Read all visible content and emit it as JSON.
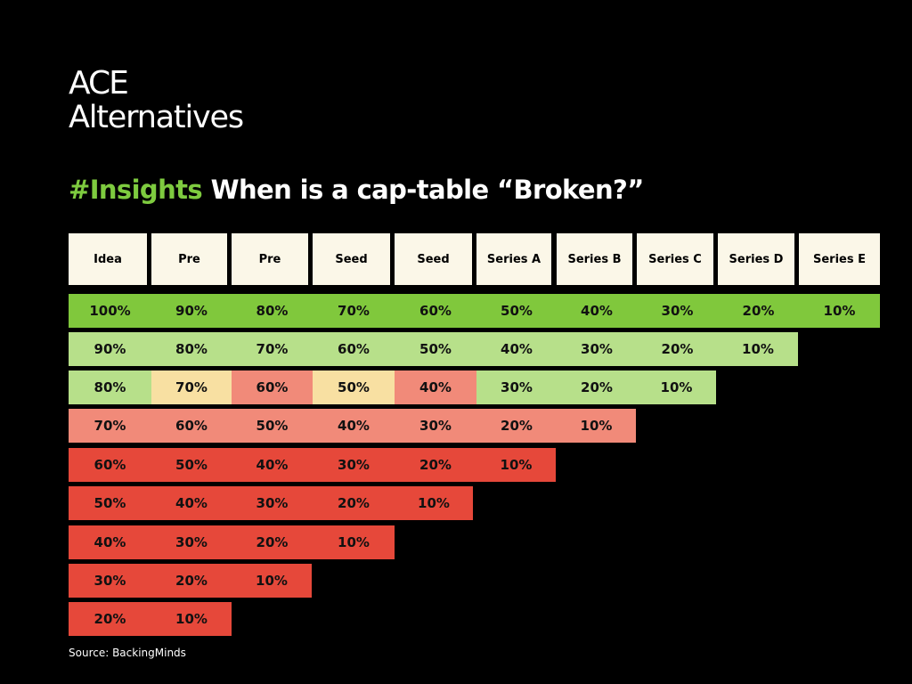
{
  "logo": {
    "line1": "ACE",
    "line2": "Alternatives"
  },
  "headline": {
    "tag": "#Insights",
    "text": "When is a cap-table “Broken?”"
  },
  "colors": {
    "green_dark": "#80c83c",
    "green_light": "#b7e08a",
    "yellow": "#f8e0a2",
    "salmon": "#f18a79",
    "red": "#e6483a",
    "header_bg": "#fbf7e8",
    "tag_green": "#7ecb3f"
  },
  "columns": [
    "Idea",
    "Pre",
    "Pre",
    "Seed",
    "Seed",
    "Series A",
    "Series B",
    "Series C",
    "Series D",
    "Series E"
  ],
  "rows": [
    {
      "fill": "green_dark",
      "cells": [
        {
          "v": "100%",
          "c": "green_dark"
        },
        {
          "v": "90%",
          "c": "green_dark"
        },
        {
          "v": "80%",
          "c": "green_dark"
        },
        {
          "v": "70%",
          "c": "green_dark"
        },
        {
          "v": "60%",
          "c": "green_dark"
        },
        {
          "v": "50%",
          "c": "green_dark"
        },
        {
          "v": "40%",
          "c": "green_dark"
        },
        {
          "v": "30%",
          "c": "green_dark"
        },
        {
          "v": "20%",
          "c": "green_dark"
        },
        {
          "v": "10%",
          "c": "green_dark"
        }
      ]
    },
    {
      "fill": "green_light",
      "cells": [
        {
          "v": "90%",
          "c": "green_light"
        },
        {
          "v": "80%",
          "c": "green_light"
        },
        {
          "v": "70%",
          "c": "green_light"
        },
        {
          "v": "60%",
          "c": "green_light"
        },
        {
          "v": "50%",
          "c": "green_light"
        },
        {
          "v": "40%",
          "c": "green_light"
        },
        {
          "v": "30%",
          "c": "green_light"
        },
        {
          "v": "20%",
          "c": "green_light"
        },
        {
          "v": "10%",
          "c": "green_light"
        }
      ]
    },
    {
      "fill": "green_light",
      "cells": [
        {
          "v": "80%",
          "c": "green_light"
        },
        {
          "v": "70%",
          "c": "yellow"
        },
        {
          "v": "60%",
          "c": "salmon"
        },
        {
          "v": "50%",
          "c": "yellow"
        },
        {
          "v": "40%",
          "c": "salmon"
        },
        {
          "v": "30%",
          "c": "green_light"
        },
        {
          "v": "20%",
          "c": "green_light"
        },
        {
          "v": "10%",
          "c": "green_light"
        }
      ]
    },
    {
      "fill": "salmon",
      "cells": [
        {
          "v": "70%",
          "c": "salmon"
        },
        {
          "v": "60%",
          "c": "salmon"
        },
        {
          "v": "50%",
          "c": "salmon"
        },
        {
          "v": "40%",
          "c": "salmon"
        },
        {
          "v": "30%",
          "c": "salmon"
        },
        {
          "v": "20%",
          "c": "salmon"
        },
        {
          "v": "10%",
          "c": "salmon"
        }
      ]
    },
    {
      "fill": "red",
      "cells": [
        {
          "v": "60%",
          "c": "red"
        },
        {
          "v": "50%",
          "c": "red"
        },
        {
          "v": "40%",
          "c": "red"
        },
        {
          "v": "30%",
          "c": "red"
        },
        {
          "v": "20%",
          "c": "red"
        },
        {
          "v": "10%",
          "c": "red"
        }
      ]
    },
    {
      "fill": "red",
      "cells": [
        {
          "v": "50%",
          "c": "red"
        },
        {
          "v": "40%",
          "c": "red"
        },
        {
          "v": "30%",
          "c": "red"
        },
        {
          "v": "20%",
          "c": "red"
        },
        {
          "v": "10%",
          "c": "red"
        }
      ]
    },
    {
      "fill": "red",
      "cells": [
        {
          "v": "40%",
          "c": "red"
        },
        {
          "v": "30%",
          "c": "red"
        },
        {
          "v": "20%",
          "c": "red"
        },
        {
          "v": "10%",
          "c": "red"
        }
      ]
    },
    {
      "fill": "red",
      "cells": [
        {
          "v": "30%",
          "c": "red"
        },
        {
          "v": "20%",
          "c": "red"
        },
        {
          "v": "10%",
          "c": "red"
        }
      ]
    },
    {
      "fill": "red",
      "cells": [
        {
          "v": "20%",
          "c": "red"
        },
        {
          "v": "10%",
          "c": "red"
        }
      ]
    }
  ],
  "source": "Source: BackingMinds"
}
